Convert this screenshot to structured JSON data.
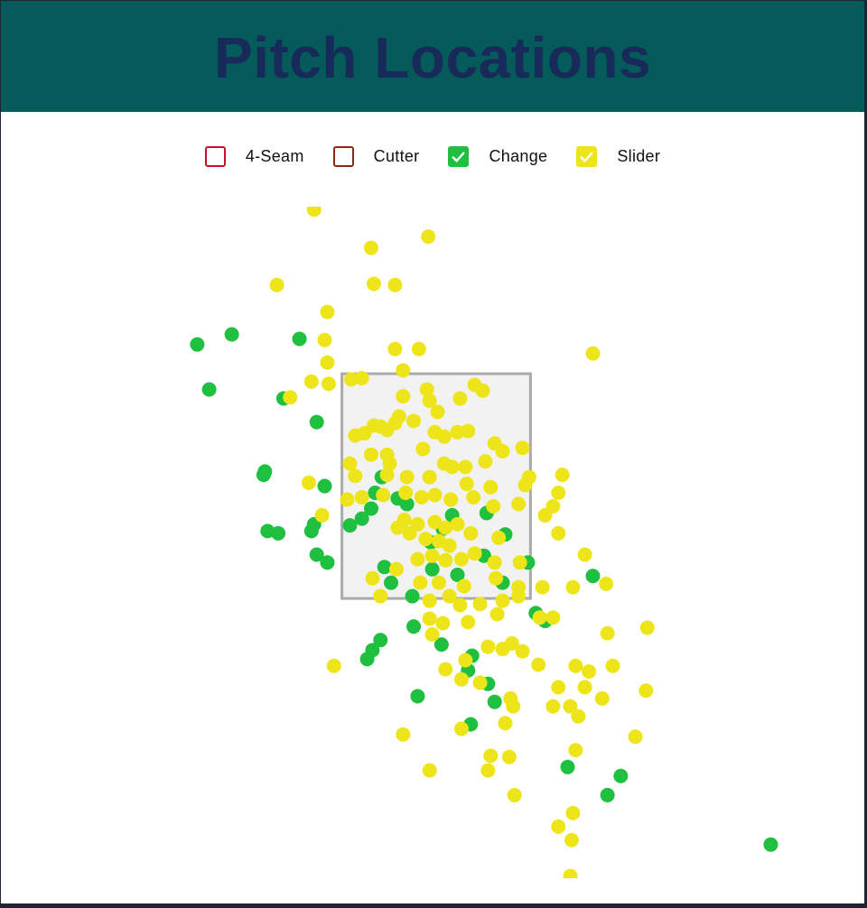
{
  "header": {
    "title": "Pitch Locations"
  },
  "legend": [
    {
      "label": "4-Seam",
      "color": "#c8102e",
      "checked": false
    },
    {
      "label": "Cutter",
      "color": "#8b2a12",
      "checked": false
    },
    {
      "label": "Change",
      "color": "#1fbf3f",
      "checked": true
    },
    {
      "label": "Slider",
      "color": "#ede51a",
      "checked": true
    }
  ],
  "chart_data": {
    "type": "scatter",
    "title": "Pitch Locations",
    "xlabel": "",
    "ylabel": "",
    "grid": false,
    "legend_placement": "top",
    "strike_zone": {
      "x": [
        -0.71,
        0.71
      ],
      "y": [
        1.5,
        3.5
      ],
      "fill": "#f2f2f2",
      "stroke": "#aaaaaa"
    },
    "series": [
      {
        "name": "Change",
        "color": "#1fbf3f",
        "points": [
          [
            -1.8,
            3.76
          ],
          [
            -1.54,
            3.85
          ],
          [
            -1.03,
            3.81
          ],
          [
            -1.71,
            3.36
          ],
          [
            -1.15,
            3.28
          ],
          [
            -0.9,
            3.07
          ],
          [
            -1.29,
            2.63
          ],
          [
            -1.3,
            2.6
          ],
          [
            -0.84,
            2.5
          ],
          [
            -1.27,
            2.1
          ],
          [
            -1.19,
            2.08
          ],
          [
            -0.94,
            2.1
          ],
          [
            -0.92,
            2.16
          ],
          [
            -0.9,
            1.89
          ],
          [
            -0.82,
            1.82
          ],
          [
            -0.65,
            2.15
          ],
          [
            -0.56,
            2.21
          ],
          [
            -0.49,
            2.3
          ],
          [
            -0.41,
            2.58
          ],
          [
            -0.46,
            2.44
          ],
          [
            -0.29,
            2.39
          ],
          [
            -0.22,
            2.34
          ],
          [
            0.12,
            2.24
          ],
          [
            0.38,
            2.26
          ],
          [
            0.52,
            2.07
          ],
          [
            0.36,
            1.88
          ],
          [
            0.16,
            1.71
          ],
          [
            -0.03,
            1.76
          ],
          [
            -0.18,
            1.52
          ],
          [
            -0.34,
            1.64
          ],
          [
            -0.39,
            1.78
          ],
          [
            0.69,
            1.82
          ],
          [
            1.18,
            1.7
          ],
          [
            0.75,
            1.37
          ],
          [
            0.82,
            1.3
          ],
          [
            -0.17,
            1.25
          ],
          [
            0.04,
            1.09
          ],
          [
            -0.42,
            1.13
          ],
          [
            -0.48,
            1.04
          ],
          [
            -0.52,
            0.96
          ],
          [
            0.27,
            0.99
          ],
          [
            0.24,
            0.86
          ],
          [
            0.39,
            0.74
          ],
          [
            0.44,
            0.58
          ],
          [
            -0.14,
            0.63
          ],
          [
            0.26,
            0.38
          ],
          [
            0.99,
            0.0
          ],
          [
            1.39,
            -0.08
          ],
          [
            1.29,
            -0.25
          ],
          [
            2.52,
            -0.69
          ],
          [
            -0.04,
            2.0
          ],
          [
            0.05,
            2.12
          ],
          [
            0.5,
            1.64
          ]
        ]
      },
      {
        "name": "Slider",
        "color": "#ede51a",
        "points": [
          [
            -0.92,
            4.96
          ],
          [
            -0.49,
            4.62
          ],
          [
            -0.06,
            4.72
          ],
          [
            -1.2,
            4.29
          ],
          [
            -0.47,
            4.3
          ],
          [
            -0.31,
            4.29
          ],
          [
            -0.82,
            4.05
          ],
          [
            -0.84,
            3.8
          ],
          [
            -0.31,
            3.72
          ],
          [
            -0.13,
            3.72
          ],
          [
            -0.82,
            3.6
          ],
          [
            -0.94,
            3.43
          ],
          [
            -0.81,
            3.41
          ],
          [
            -0.25,
            3.53
          ],
          [
            1.18,
            3.68
          ],
          [
            -1.1,
            3.29
          ],
          [
            -0.64,
            3.45
          ],
          [
            -0.56,
            3.46
          ],
          [
            -0.07,
            3.36
          ],
          [
            0.29,
            3.4
          ],
          [
            0.35,
            3.35
          ],
          [
            0.18,
            3.28
          ],
          [
            -0.25,
            3.3
          ],
          [
            -0.05,
            3.26
          ],
          [
            0.01,
            3.16
          ],
          [
            -0.28,
            3.12
          ],
          [
            -0.17,
            3.08
          ],
          [
            -0.47,
            3.04
          ],
          [
            -0.37,
            3.0
          ],
          [
            -0.61,
            2.95
          ],
          [
            -0.54,
            2.97
          ],
          [
            -0.42,
            3.03
          ],
          [
            -0.31,
            3.06
          ],
          [
            -0.01,
            2.98
          ],
          [
            0.06,
            2.94
          ],
          [
            0.16,
            2.98
          ],
          [
            0.24,
            2.99
          ],
          [
            0.44,
            2.88
          ],
          [
            0.5,
            2.81
          ],
          [
            0.65,
            2.84
          ],
          [
            -0.1,
            2.83
          ],
          [
            -0.37,
            2.78
          ],
          [
            -0.49,
            2.78
          ],
          [
            -0.65,
            2.7
          ],
          [
            -0.35,
            2.7
          ],
          [
            0.06,
            2.7
          ],
          [
            0.12,
            2.67
          ],
          [
            0.22,
            2.67
          ],
          [
            0.37,
            2.72
          ],
          [
            -0.61,
            2.59
          ],
          [
            -0.37,
            2.6
          ],
          [
            -0.22,
            2.58
          ],
          [
            -0.05,
            2.58
          ],
          [
            0.23,
            2.52
          ],
          [
            0.41,
            2.49
          ],
          [
            0.7,
            2.58
          ],
          [
            0.67,
            2.51
          ],
          [
            0.95,
            2.6
          ],
          [
            0.92,
            2.44
          ],
          [
            -0.96,
            2.53
          ],
          [
            -0.67,
            2.38
          ],
          [
            -0.56,
            2.4
          ],
          [
            -0.4,
            2.42
          ],
          [
            -0.23,
            2.44
          ],
          [
            -0.11,
            2.4
          ],
          [
            -0.01,
            2.42
          ],
          [
            0.11,
            2.38
          ],
          [
            0.28,
            2.4
          ],
          [
            0.43,
            2.32
          ],
          [
            0.62,
            2.34
          ],
          [
            0.88,
            2.32
          ],
          [
            0.82,
            2.24
          ],
          [
            -0.86,
            2.24
          ],
          [
            -0.24,
            2.2
          ],
          [
            -0.14,
            2.16
          ],
          [
            -0.01,
            2.18
          ],
          [
            0.07,
            2.13
          ],
          [
            0.16,
            2.16
          ],
          [
            -0.29,
            2.13
          ],
          [
            -0.2,
            2.08
          ],
          [
            -0.08,
            2.03
          ],
          [
            0.02,
            2.01
          ],
          [
            0.1,
            1.97
          ],
          [
            0.26,
            2.08
          ],
          [
            0.47,
            2.04
          ],
          [
            0.92,
            2.08
          ],
          [
            1.12,
            1.89
          ],
          [
            -0.14,
            1.85
          ],
          [
            -0.03,
            1.88
          ],
          [
            0.07,
            1.84
          ],
          [
            0.19,
            1.85
          ],
          [
            0.29,
            1.9
          ],
          [
            0.44,
            1.82
          ],
          [
            0.63,
            1.82
          ],
          [
            -0.48,
            1.68
          ],
          [
            -0.3,
            1.76
          ],
          [
            -0.12,
            1.64
          ],
          [
            0.02,
            1.64
          ],
          [
            0.21,
            1.61
          ],
          [
            0.45,
            1.68
          ],
          [
            0.62,
            1.6
          ],
          [
            0.8,
            1.6
          ],
          [
            1.03,
            1.6
          ],
          [
            1.28,
            1.63
          ],
          [
            -0.42,
            1.52
          ],
          [
            -0.05,
            1.48
          ],
          [
            0.1,
            1.52
          ],
          [
            0.18,
            1.44
          ],
          [
            0.33,
            1.45
          ],
          [
            0.5,
            1.48
          ],
          [
            0.62,
            1.52
          ],
          [
            0.46,
            1.36
          ],
          [
            0.78,
            1.33
          ],
          [
            0.88,
            1.33
          ],
          [
            -0.05,
            1.32
          ],
          [
            0.05,
            1.28
          ],
          [
            0.24,
            1.29
          ],
          [
            1.29,
            1.19
          ],
          [
            1.59,
            1.24
          ],
          [
            -0.03,
            1.18
          ],
          [
            0.39,
            1.07
          ],
          [
            0.5,
            1.05
          ],
          [
            0.57,
            1.1
          ],
          [
            0.65,
            1.03
          ],
          [
            0.77,
            0.91
          ],
          [
            1.05,
            0.9
          ],
          [
            1.15,
            0.85
          ],
          [
            1.33,
            0.9
          ],
          [
            0.22,
            0.95
          ],
          [
            0.07,
            0.87
          ],
          [
            0.19,
            0.78
          ],
          [
            0.33,
            0.75
          ],
          [
            -0.77,
            0.9
          ],
          [
            0.92,
            0.71
          ],
          [
            1.12,
            0.71
          ],
          [
            1.58,
            0.68
          ],
          [
            1.25,
            0.61
          ],
          [
            0.56,
            0.61
          ],
          [
            0.58,
            0.54
          ],
          [
            0.88,
            0.54
          ],
          [
            1.01,
            0.54
          ],
          [
            1.07,
            0.45
          ],
          [
            0.52,
            0.39
          ],
          [
            0.19,
            0.34
          ],
          [
            -0.25,
            0.29
          ],
          [
            1.5,
            0.27
          ],
          [
            1.05,
            0.15
          ],
          [
            0.41,
            0.1
          ],
          [
            0.55,
            0.09
          ],
          [
            0.39,
            -0.03
          ],
          [
            -0.05,
            -0.03
          ],
          [
            0.59,
            -0.25
          ],
          [
            1.03,
            -0.41
          ],
          [
            0.92,
            -0.53
          ],
          [
            1.02,
            -0.65
          ],
          [
            1.01,
            -0.97
          ]
        ]
      }
    ]
  }
}
